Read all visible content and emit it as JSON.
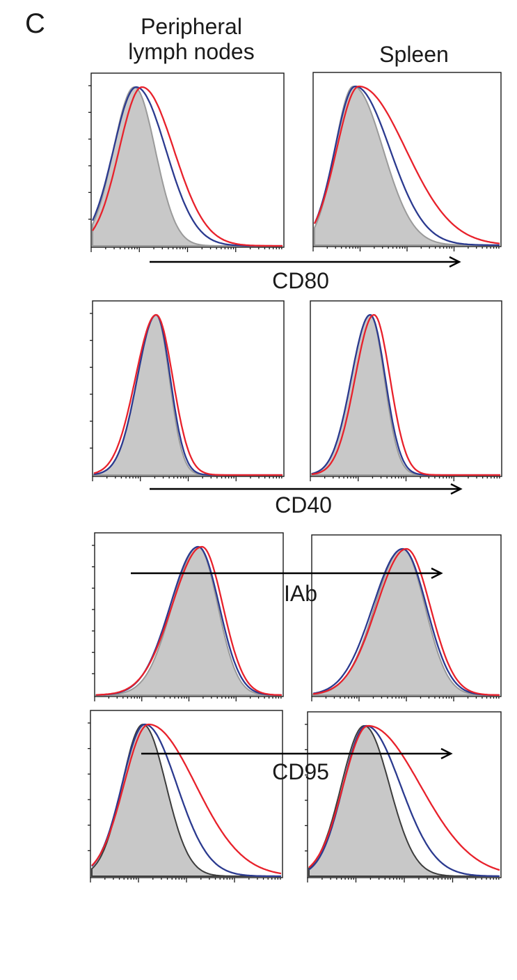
{
  "panel_letter": "C",
  "columns": [
    "Peripheral\nlymph nodes",
    "Spleen"
  ],
  "column_lines": [
    [
      "Peripheral",
      "lymph nodes"
    ],
    [
      "Spleen"
    ]
  ],
  "colors": {
    "filled_control": "#c8c8c8",
    "filled_outline_grey": "#9a9a9a",
    "filled_outline_dark": "#3c3c3c",
    "blue": "#2b3a8f",
    "red": "#e8212b",
    "frame": "#1a1a1a"
  },
  "chart_data": [
    {
      "type": "area",
      "marker": "CD80",
      "tissue": "Peripheral lymph nodes",
      "x_scale": "log",
      "y_ticks_count": 6,
      "series": [
        {
          "color": "grey-filled",
          "peak_x": 0.22,
          "width": 0.11,
          "skew": 1.0
        },
        {
          "color": "blue",
          "peak_x": 0.23,
          "width": 0.12,
          "skew": 1.3
        },
        {
          "color": "red",
          "peak_x": 0.26,
          "width": 0.12,
          "skew": 1.4
        }
      ]
    },
    {
      "type": "area",
      "marker": "CD80",
      "tissue": "Spleen",
      "x_scale": "log",
      "y_ticks_count": 0,
      "series": [
        {
          "color": "grey-filled",
          "peak_x": 0.21,
          "width": 0.1,
          "skew": 1.6
        },
        {
          "color": "blue",
          "peak_x": 0.22,
          "width": 0.11,
          "skew": 1.7
        },
        {
          "color": "red",
          "peak_x": 0.24,
          "width": 0.12,
          "skew": 2.1
        }
      ]
    },
    {
      "type": "area",
      "marker": "CD40",
      "tissue": "Peripheral lymph nodes",
      "x_scale": "log",
      "y_ticks_count": 6,
      "series": [
        {
          "color": "grey-filled",
          "peak_x": 0.33,
          "width": 0.1,
          "skew": 0.7
        },
        {
          "color": "blue",
          "peak_x": 0.33,
          "width": 0.1,
          "skew": 0.75
        },
        {
          "color": "red",
          "peak_x": 0.33,
          "width": 0.11,
          "skew": 0.8
        }
      ]
    },
    {
      "type": "area",
      "marker": "CD40",
      "tissue": "Spleen",
      "x_scale": "log",
      "y_ticks_count": 0,
      "series": [
        {
          "color": "grey-filled",
          "peak_x": 0.31,
          "width": 0.1,
          "skew": 0.75
        },
        {
          "color": "blue",
          "peak_x": 0.31,
          "width": 0.1,
          "skew": 0.8
        },
        {
          "color": "red",
          "peak_x": 0.33,
          "width": 0.1,
          "skew": 0.85
        }
      ]
    },
    {
      "type": "area",
      "marker": "IAb",
      "tissue": "Peripheral lymph nodes",
      "x_scale": "log",
      "y_ticks_count": 7,
      "series": [
        {
          "color": "grey-filled",
          "peak_x": 0.55,
          "width": 0.14,
          "skew": 0.75
        },
        {
          "color": "blue",
          "peak_x": 0.55,
          "width": 0.15,
          "skew": 0.75
        },
        {
          "color": "red",
          "peak_x": 0.57,
          "width": 0.16,
          "skew": 0.7
        }
      ]
    },
    {
      "type": "area",
      "marker": "IAb",
      "tissue": "Spleen",
      "x_scale": "log",
      "y_ticks_count": 0,
      "series": [
        {
          "color": "grey-filled",
          "peak_x": 0.48,
          "width": 0.15,
          "skew": 0.8
        },
        {
          "color": "blue",
          "peak_x": 0.48,
          "width": 0.16,
          "skew": 0.8
        },
        {
          "color": "red",
          "peak_x": 0.5,
          "width": 0.16,
          "skew": 0.8
        }
      ]
    },
    {
      "type": "area",
      "marker": "CD95",
      "tissue": "Peripheral lymph nodes",
      "x_scale": "log",
      "y_ticks_count": 6,
      "series": [
        {
          "color": "dark-filled",
          "peak_x": 0.27,
          "width": 0.11,
          "skew": 1.1
        },
        {
          "color": "blue",
          "peak_x": 0.28,
          "width": 0.12,
          "skew": 1.4
        },
        {
          "color": "red",
          "peak_x": 0.3,
          "width": 0.13,
          "skew": 1.9
        }
      ]
    },
    {
      "type": "area",
      "marker": "CD95",
      "tissue": "Spleen",
      "x_scale": "log",
      "y_ticks_count": 6,
      "series": [
        {
          "color": "dark-filled",
          "peak_x": 0.29,
          "width": 0.12,
          "skew": 1.1
        },
        {
          "color": "blue",
          "peak_x": 0.3,
          "width": 0.12,
          "skew": 1.5
        },
        {
          "color": "red",
          "peak_x": 0.31,
          "width": 0.13,
          "skew": 2.1
        }
      ]
    }
  ]
}
